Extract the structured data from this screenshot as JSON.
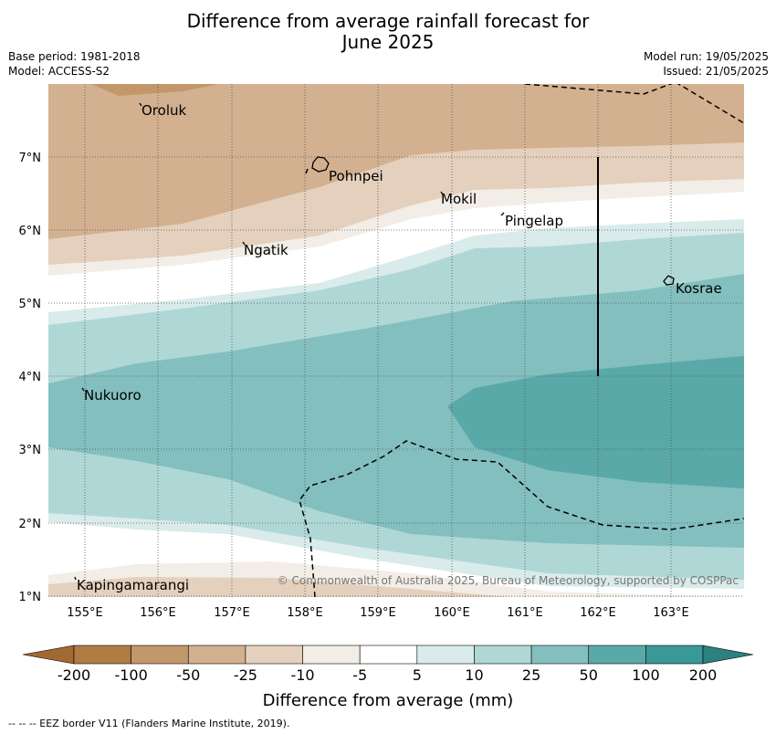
{
  "title": {
    "line1": "Difference from average rainfall forecast for",
    "line2": "June 2025"
  },
  "meta": {
    "base_period": "Base period: 1981-2018",
    "model": "Model: ACCESS-S2",
    "model_run": "Model run: 19/05/2025",
    "issued": "Issued: 21/05/2025"
  },
  "map": {
    "lat_labels": [
      "1°N",
      "2°N",
      "3°N",
      "4°N",
      "5°N",
      "6°N",
      "7°N"
    ],
    "lon_labels": [
      "155°E",
      "156°E",
      "157°E",
      "158°E",
      "159°E",
      "160°E",
      "161°E",
      "162°E",
      "163°E"
    ],
    "places": {
      "oroluk": "Oroluk",
      "pohnpei": "Pohnpei",
      "mokil": "Mokil",
      "pingelap": "Pingelap",
      "ngatik": "Ngatik",
      "kosrae": "Kosrae",
      "nukuoro": "Nukuoro",
      "kapingamarangi": "Kapingamarangi"
    },
    "copyright": "© Commonwealth of Australia 2025, Bureau of Meteorology, supported by COSPPac"
  },
  "colorbar": {
    "ticks": [
      "-200",
      "-100",
      "-50",
      "-25",
      "-10",
      "-5",
      "5",
      "10",
      "25",
      "50",
      "100",
      "200"
    ],
    "colors": [
      "#a16a32",
      "#b17b44",
      "#c29769",
      "#d2b090",
      "#e4d0bd",
      "#f2ede6",
      "#ffffff",
      "#d9ebea",
      "#afd7d6",
      "#83bfbf",
      "#5aa9a9",
      "#3a9898",
      "#2e7f7f"
    ],
    "label": "Difference from average (mm)"
  },
  "footer": "--  --  -- EEZ border V11 (Flanders Marine Institute, 2019)."
}
